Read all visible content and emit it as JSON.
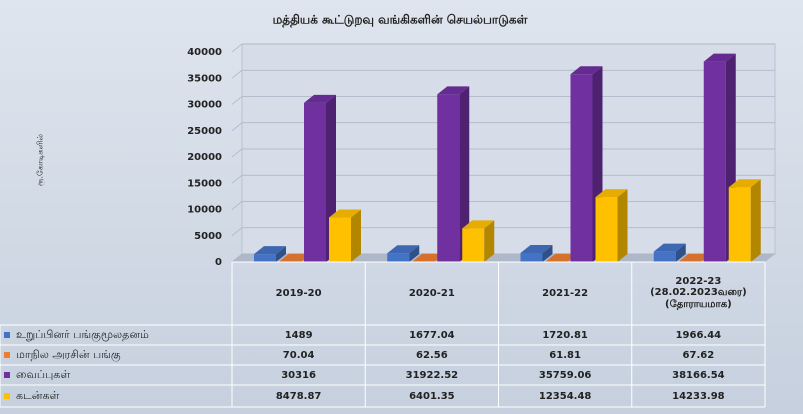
{
  "chart_data": {
    "type": "bar3d",
    "title": "மத்தியக் கூட்டுறவு வங்கிகளின் செயல்பாடுகள்",
    "y_label": "ரூ.கோடிகளில்",
    "categories": [
      "2019-20",
      "2020-21",
      "2021-22",
      "2022-23\n(28.02.2023வரை)\n(தோராயமாக)"
    ],
    "series": [
      {
        "name": "உறுப்பினர் பங்குமூலதனம்",
        "color": "#4472c4",
        "values": [
          1489,
          1677.04,
          1720.81,
          1966.44
        ]
      },
      {
        "name": "மாநில அரசின் பங்கு",
        "color": "#ed7d31",
        "values": [
          70.04,
          62.56,
          61.81,
          67.62
        ]
      },
      {
        "name": "வைப்புகள்",
        "color": "#7030a0",
        "values": [
          30316,
          31922.52,
          35759.06,
          38166.54
        ]
      },
      {
        "name": "கடன்கள்",
        "color": "#ffc000",
        "values": [
          8478.87,
          6401.35,
          12354.48,
          14233.98
        ]
      }
    ],
    "ylim": [
      0,
      40000
    ],
    "yticks": [
      0,
      5000,
      10000,
      15000,
      20000,
      25000,
      30000,
      35000,
      40000
    ],
    "grid": true
  }
}
